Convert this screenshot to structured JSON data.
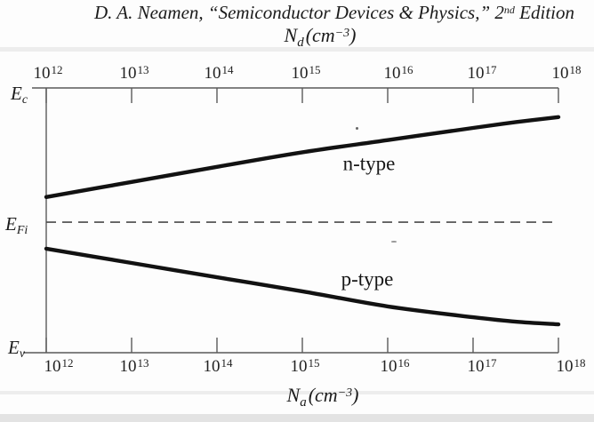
{
  "figure_caption": {
    "prefix": "D. A. Neamen, “Semiconductor Devices & Physics,” 2",
    "superscript": "nd",
    "suffix": " Edition"
  },
  "tick_base": "10",
  "top_axis_title": {
    "symbol": "N",
    "symbol_sub": "d",
    "unit_open": "(",
    "unit": "cm",
    "unit_exp": "−3",
    "unit_close": ")"
  },
  "bottom_axis_title": {
    "symbol": "N",
    "symbol_sub": "a",
    "unit_open": "(",
    "unit": "cm",
    "unit_exp": "−3",
    "unit_close": ")"
  },
  "energy_labels": {
    "conduction": {
      "base": "E",
      "sub": "c"
    },
    "intrinsic": {
      "base": "E",
      "sub": "Fi"
    },
    "valence": {
      "base": "E",
      "sub": "v"
    }
  },
  "curve_labels": {
    "n": "n-type",
    "p": "p-type"
  },
  "chart_data": {
    "type": "line",
    "title": "D. A. Neamen, “Semiconductor Devices & Physics,” 2nd Edition",
    "description": "Position of the Fermi level between Ev (bottom) and Ec (top) versus doping concentration: n-type curve read against top axis Nd, p-type curve read against bottom axis Na; dashed line marks the intrinsic level EFi.",
    "x_scale": "log10",
    "x_range": [
      1000000000000.0,
      1e+18
    ],
    "x_tick_exponents": [
      12,
      13,
      14,
      15,
      16,
      17,
      18
    ],
    "top_xlabel": "Nd (cm−3)",
    "bottom_xlabel": "Na (cm−3)",
    "y_axis_tick_labels": [
      "Ec",
      "EFi",
      "Ev"
    ],
    "grid": false,
    "legend": "inline curve labels",
    "series": [
      {
        "name": "n-type",
        "x_exponents": [
          12,
          13,
          14,
          15,
          16,
          17,
          17.5,
          18
        ],
        "y_fraction_above_Ev": [
          0.588,
          0.645,
          0.702,
          0.757,
          0.803,
          0.849,
          0.871,
          0.89
        ]
      },
      {
        "name": "p-type",
        "x_exponents": [
          12,
          13,
          14,
          15,
          16,
          17,
          17.5,
          18
        ],
        "y_fraction_above_Ev": [
          0.393,
          0.339,
          0.285,
          0.232,
          0.175,
          0.134,
          0.117,
          0.107
        ]
      }
    ],
    "reference_line": {
      "label": "EFi",
      "y_fraction_above_Ev": 0.493,
      "style": "dashed"
    }
  }
}
